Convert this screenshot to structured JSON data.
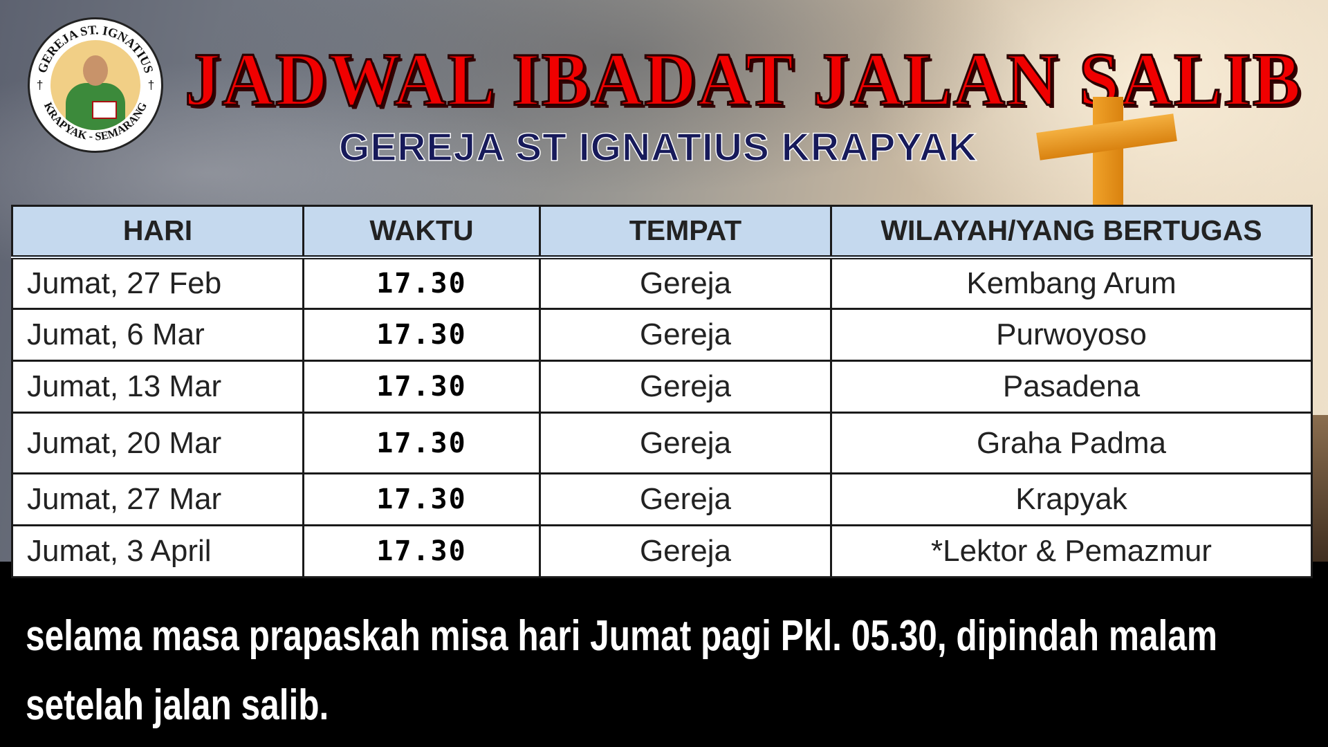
{
  "logo": {
    "text_top": "GEREJA ST. IGNATIUS",
    "text_bottom": "KRAPYAK - SEMARANG",
    "icon": "saint-ignatius-emblem"
  },
  "title": "JADWAL IBADAT JALAN SALIB",
  "subtitle": "GEREJA ST IGNATIUS KRAPYAK",
  "colors": {
    "title": "#f00000",
    "subtitle": "#171a5a",
    "header_bg": "#c5d9ee",
    "cross": "#e8951f"
  },
  "table": {
    "headers": [
      "HARI",
      "WAKTU",
      "TEMPAT",
      "WILAYAH/YANG BERTUGAS"
    ],
    "rows": [
      [
        "Jumat, 27 Feb",
        "17.30",
        "Gereja",
        "Kembang Arum"
      ],
      [
        "Jumat, 6 Mar",
        "17.30",
        "Gereja",
        "Purwoyoso"
      ],
      [
        "Jumat, 13 Mar",
        "17.30",
        "Gereja",
        "Pasadena"
      ],
      [
        "Jumat, 20 Mar",
        "17.30",
        "Gereja",
        "Graha Padma"
      ],
      [
        "Jumat, 27 Mar",
        "17.30",
        "Gereja",
        "Krapyak"
      ],
      [
        "Jumat, 3 April",
        "17.30",
        "Gereja",
        "*Lektor & Pemazmur"
      ]
    ]
  },
  "note": "selama masa prapaskah misa hari Jumat pagi Pkl. 05.30, dipindah malam setelah jalan salib."
}
